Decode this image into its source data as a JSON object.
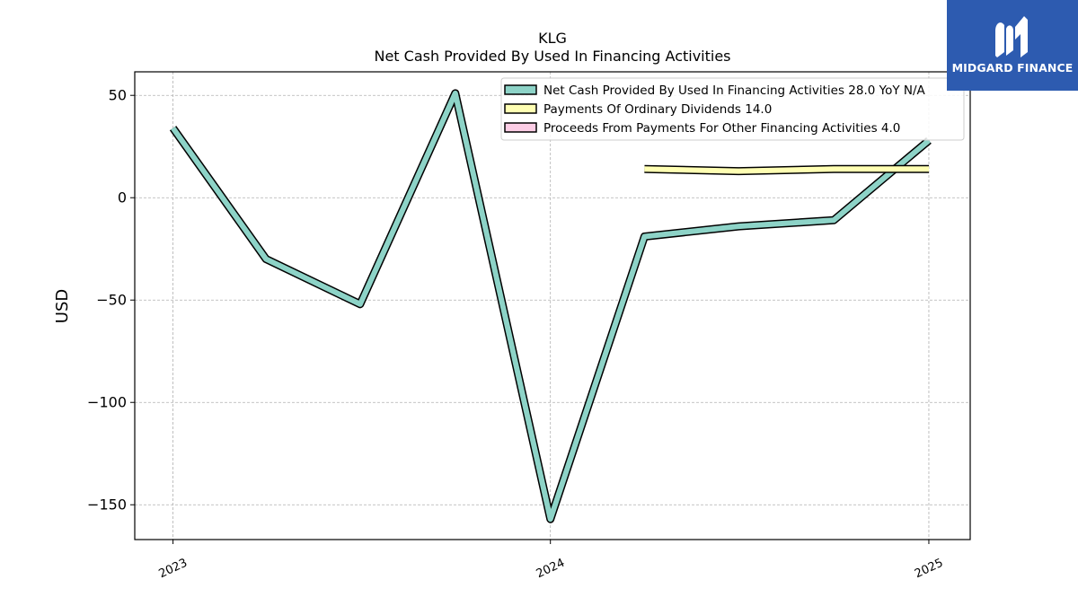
{
  "title_lines": [
    "KLG",
    "Net Cash Provided By Used In Financing Activities"
  ],
  "brand": {
    "name": "MIDGARD FINANCE",
    "color": "#2d5bb0"
  },
  "chart_data": {
    "type": "line",
    "ylabel": "USD",
    "xlabel": "",
    "x_ticks": [
      "2023",
      "2024",
      "2025"
    ],
    "y_ticks": [
      -150,
      -100,
      -50,
      0,
      50
    ],
    "ylim": [
      -167,
      61.5
    ],
    "xlim": [
      "2022-11-25",
      "2025-02-10"
    ],
    "grid": true,
    "legend_position": "top-right",
    "series": [
      {
        "name": "Net Cash Provided By Used In Financing Activities",
        "legend_label": "Net Cash Provided By Used In Financing Activities  28.0 YoY N/A",
        "color": "#8dd3c7",
        "x": [
          "2023-01-01",
          "2023-04-01",
          "2023-07-01",
          "2023-10-01",
          "2024-01-01",
          "2024-04-01",
          "2024-07-01",
          "2024-10-01",
          "2025-01-01"
        ],
        "y": [
          34,
          -30,
          -52,
          51,
          -157,
          -19,
          -14,
          -11,
          28
        ]
      },
      {
        "name": "Payments Of Ordinary Dividends",
        "legend_label": "Payments Of Ordinary Dividends  14.0",
        "color": "#ffffb3",
        "x": [
          "2024-04-01",
          "2024-07-01",
          "2024-10-01",
          "2025-01-01"
        ],
        "y": [
          14,
          13,
          14,
          14
        ]
      },
      {
        "name": "Proceeds From Payments For Other Financing Activities",
        "legend_label": "Proceeds From Payments For Other Financing Activities  4.0",
        "color": "#fccde5",
        "x": [],
        "y": []
      }
    ]
  }
}
